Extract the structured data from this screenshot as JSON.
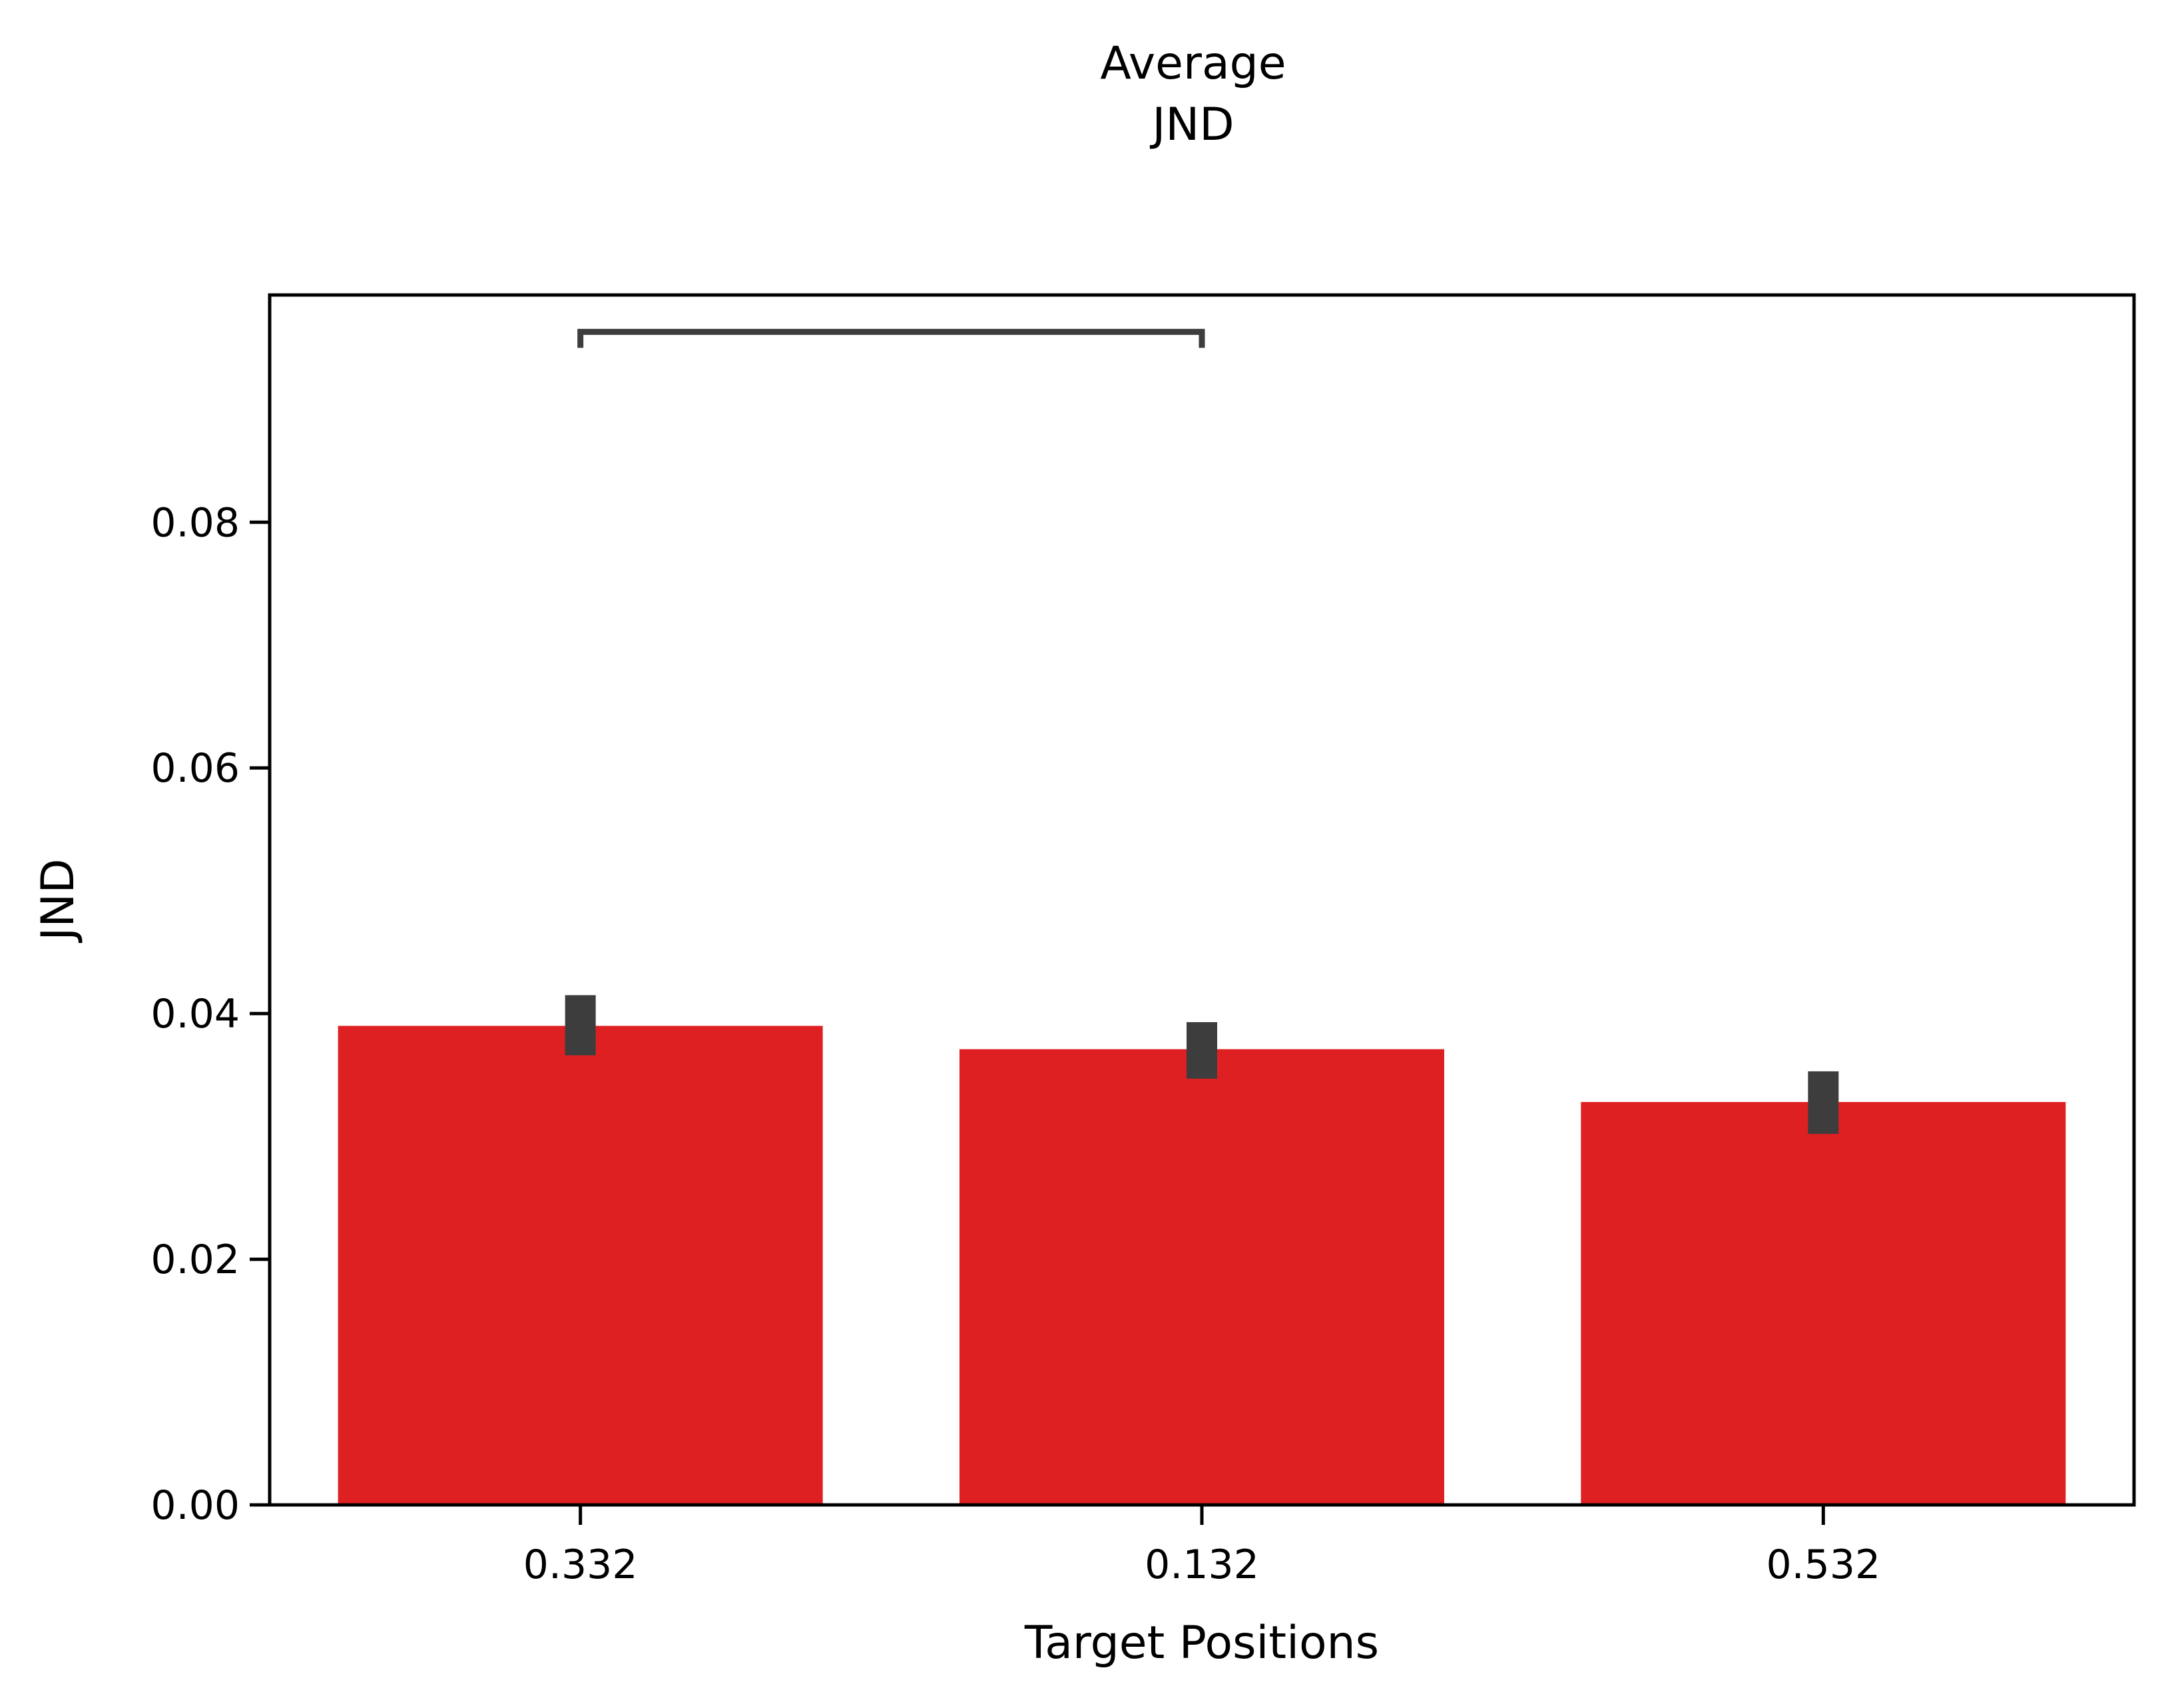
{
  "chart_data": {
    "type": "bar",
    "title_lines": [
      "Average",
      "JND"
    ],
    "xlabel": "Target Positions",
    "ylabel": "JND",
    "categories": [
      "0.332",
      "0.132",
      "0.532"
    ],
    "values": [
      0.039,
      0.0371,
      0.0328
    ],
    "error_bars": [
      [
        0.0366,
        0.0415
      ],
      [
        0.0347,
        0.0393
      ],
      [
        0.0302,
        0.0353
      ]
    ],
    "ylim": [
      0,
      0.0985
    ],
    "yticks": [
      0.0,
      0.02,
      0.04,
      0.06,
      0.08
    ],
    "ytick_labels": [
      "0.00",
      "0.02",
      "0.04",
      "0.06",
      "0.08"
    ],
    "significance_bracket": {
      "from": "0.332",
      "to": "0.132",
      "y": 0.0955
    },
    "grid": false,
    "colors": {
      "bar": "#df2022",
      "errorbar": "#3d3d3d",
      "bracket": "#3d3d3d",
      "axis": "#000000"
    }
  }
}
